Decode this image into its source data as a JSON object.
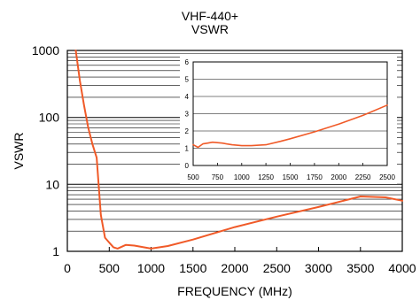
{
  "title_lines": [
    "VHF-440+",
    "VSWR"
  ],
  "chart_data": [
    {
      "type": "line",
      "xlabel": "FREQUENCY (MHz)",
      "ylabel": "VSWR",
      "xlim": [
        0,
        4000
      ],
      "ylim": [
        1,
        1000
      ],
      "yscale": "log",
      "grid": true,
      "x_ticks": [
        0,
        500,
        1000,
        1500,
        2000,
        2500,
        3000,
        3500,
        4000
      ],
      "x_tick_labels": [
        "0",
        "500",
        "1000",
        "1500",
        "2000",
        "2500",
        "3000",
        "3500",
        "4000"
      ],
      "y_ticks": [
        1,
        10,
        100,
        1000
      ],
      "y_tick_labels": [
        "1",
        "10",
        "100",
        "1000"
      ],
      "line_color": "#f05a28",
      "series": [
        {
          "x": [
            100,
            150,
            200,
            250,
            300,
            350,
            400,
            450,
            500,
            550,
            600,
            700,
            800,
            1000,
            1200,
            1500,
            2000,
            2500,
            3000,
            3500,
            3800,
            4000
          ],
          "values": [
            1000,
            350,
            150,
            70,
            40,
            25,
            3.5,
            1.6,
            1.35,
            1.15,
            1.1,
            1.25,
            1.22,
            1.1,
            1.2,
            1.5,
            2.3,
            3.3,
            4.6,
            6.6,
            6.4,
            5.7
          ]
        }
      ]
    },
    {
      "type": "line",
      "inset": true,
      "xlim": [
        500,
        2500
      ],
      "ylim": [
        0,
        6
      ],
      "grid": true,
      "x_ticks": [
        500,
        750,
        1000,
        1250,
        1500,
        1750,
        2000,
        2250,
        2500
      ],
      "x_tick_labels": [
        "500",
        "750",
        "1000",
        "1250",
        "1500",
        "1750",
        "2000",
        "2250",
        "2500"
      ],
      "y_ticks": [
        0,
        1,
        2,
        3,
        4,
        5,
        6
      ],
      "y_tick_labels": [
        "0",
        "1",
        "2",
        "3",
        "4",
        "5",
        "6"
      ],
      "line_color": "#f05a28",
      "series": [
        {
          "x": [
            500,
            550,
            600,
            650,
            700,
            800,
            900,
            1000,
            1100,
            1250,
            1400,
            1500,
            1750,
            2000,
            2250,
            2500
          ],
          "values": [
            1.2,
            1.05,
            1.25,
            1.3,
            1.35,
            1.3,
            1.2,
            1.15,
            1.15,
            1.2,
            1.4,
            1.55,
            1.95,
            2.4,
            2.9,
            3.5
          ]
        }
      ]
    }
  ]
}
